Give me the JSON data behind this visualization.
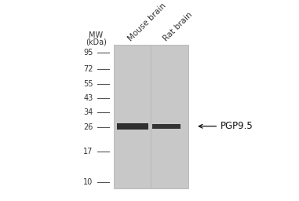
{
  "background_color": "#ffffff",
  "gel_color": "#c8c8c8",
  "gel_edge_color": "#aaaaaa",
  "mw_labels": [
    95,
    72,
    55,
    43,
    34,
    26,
    17,
    10
  ],
  "band_color": "#1a1a1a",
  "lane_labels": [
    "Mouse brain",
    "Rat brain"
  ],
  "mw_header_line1": "MW",
  "mw_header_line2": "(kDa)",
  "annotation_text": "← PGP9.5",
  "annotation_fontsize": 8.5,
  "tick_color": "#555555",
  "label_fontsize": 7.0,
  "header_fontsize": 7.0,
  "lane_label_fontsize": 7.5,
  "figure_bg": "#ffffff"
}
